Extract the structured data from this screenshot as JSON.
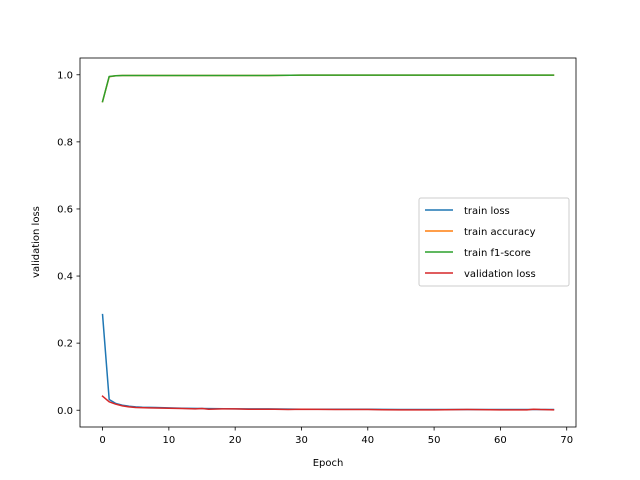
{
  "chart_data": {
    "type": "line",
    "title": "",
    "xlabel": "Epoch",
    "ylabel": "validation loss",
    "xlim": [
      -3.4,
      71.4
    ],
    "ylim": [
      -0.05,
      1.05
    ],
    "xticks": [
      0,
      10,
      20,
      30,
      40,
      50,
      60,
      70
    ],
    "yticks": [
      0.0,
      0.2,
      0.4,
      0.6,
      0.8,
      1.0
    ],
    "xtick_labels": [
      "0",
      "10",
      "20",
      "30",
      "40",
      "50",
      "60",
      "70"
    ],
    "ytick_labels": [
      "0.0",
      "0.2",
      "0.4",
      "0.6",
      "0.8",
      "1.0"
    ],
    "grid": false,
    "legend_position": "center-right",
    "series": [
      {
        "name": "train loss",
        "color": "#1f77b4",
        "x": [
          0,
          1,
          2,
          3,
          4,
          5,
          6,
          8,
          10,
          12,
          15,
          20,
          25,
          30,
          35,
          40,
          45,
          50,
          55,
          60,
          65,
          68
        ],
        "values": [
          0.285,
          0.032,
          0.02,
          0.015,
          0.012,
          0.01,
          0.009,
          0.008,
          0.007,
          0.006,
          0.005,
          0.004,
          0.004,
          0.003,
          0.003,
          0.003,
          0.002,
          0.002,
          0.002,
          0.002,
          0.002,
          0.002
        ]
      },
      {
        "name": "train accuracy",
        "color": "#ff7f0e",
        "x": [
          0,
          1,
          2,
          3,
          5,
          10,
          15,
          20,
          25,
          30,
          35,
          40,
          45,
          50,
          55,
          60,
          65,
          68
        ],
        "values": [
          0.92,
          0.994,
          0.997,
          0.998,
          0.998,
          0.998,
          0.998,
          0.998,
          0.998,
          0.999,
          0.999,
          0.999,
          0.999,
          0.999,
          0.999,
          0.999,
          0.999,
          0.999
        ]
      },
      {
        "name": "train f1-score",
        "color": "#2ca02c",
        "x": [
          0,
          1,
          2,
          3,
          5,
          10,
          15,
          20,
          25,
          30,
          35,
          40,
          45,
          50,
          55,
          60,
          65,
          68
        ],
        "values": [
          0.92,
          0.995,
          0.997,
          0.998,
          0.998,
          0.998,
          0.998,
          0.998,
          0.998,
          0.999,
          0.999,
          0.999,
          0.999,
          0.999,
          0.999,
          0.999,
          0.999,
          0.999
        ]
      },
      {
        "name": "validation loss",
        "color": "#d62728",
        "x": [
          0,
          1,
          2,
          3,
          4,
          5,
          7,
          10,
          12,
          14,
          15,
          16,
          18,
          20,
          22,
          24,
          26,
          28,
          30,
          35,
          40,
          45,
          50,
          55,
          60,
          64,
          65,
          66,
          68
        ],
        "values": [
          0.042,
          0.025,
          0.018,
          0.013,
          0.01,
          0.008,
          0.007,
          0.006,
          0.005,
          0.004,
          0.005,
          0.003,
          0.004,
          0.004,
          0.003,
          0.003,
          0.003,
          0.002,
          0.003,
          0.002,
          0.002,
          0.001,
          0.001,
          0.002,
          0.001,
          0.001,
          0.003,
          0.002,
          0.001
        ]
      }
    ]
  }
}
